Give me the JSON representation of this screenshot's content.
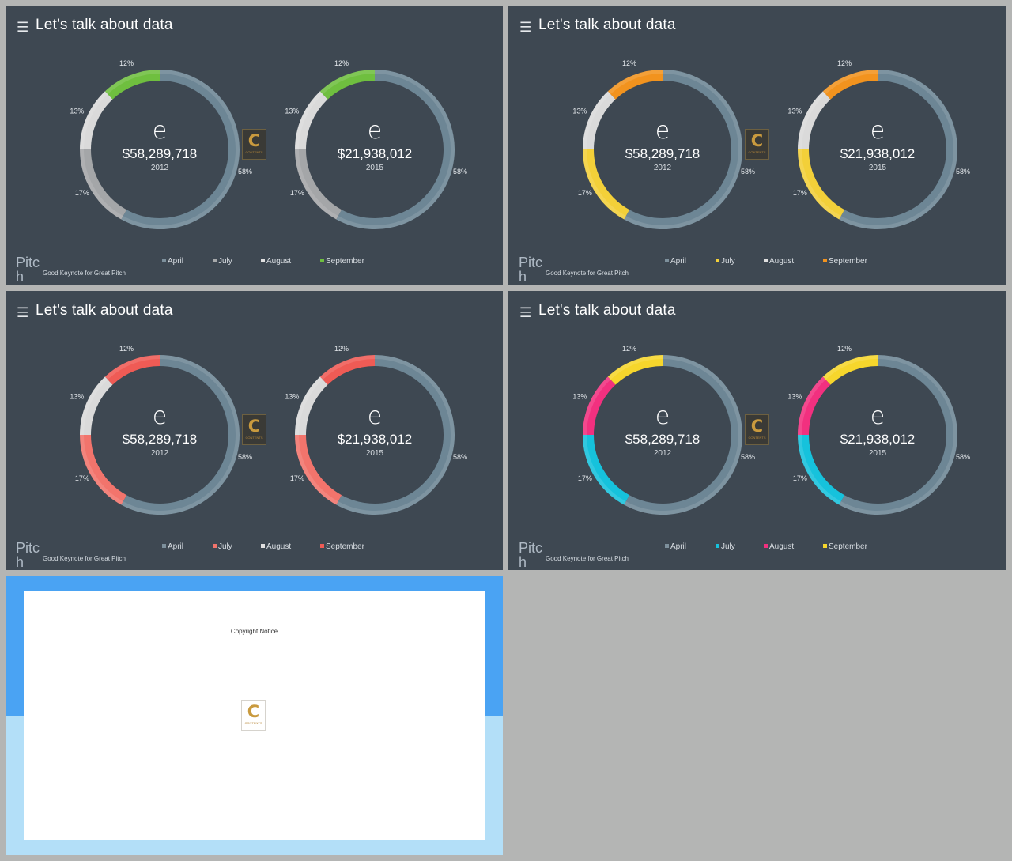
{
  "slides": [
    {
      "title": "Let's talk about data",
      "brand": "Pitc\nh",
      "tagline": "Good Keynote for Great Pitch",
      "legend": [
        {
          "label": "April",
          "color": "#7d909c"
        },
        {
          "label": "July",
          "color": "#a7a9ab"
        },
        {
          "label": "August",
          "color": "#e0e0e0"
        },
        {
          "label": "September",
          "color": "#6fbf3f"
        }
      ]
    },
    {
      "title": "Let's talk about data",
      "brand": "Pitc\nh",
      "tagline": "Good Keynote for Great Pitch",
      "legend": [
        {
          "label": "April",
          "color": "#7d909c"
        },
        {
          "label": "July",
          "color": "#f3d039"
        },
        {
          "label": "August",
          "color": "#e0e0e0"
        },
        {
          "label": "September",
          "color": "#f2931e"
        }
      ]
    },
    {
      "title": "Let's talk about data",
      "brand": "Pitc\nh",
      "tagline": "Good Keynote for Great Pitch",
      "legend": [
        {
          "label": "April",
          "color": "#7d909c"
        },
        {
          "label": "July",
          "color": "#f2746c"
        },
        {
          "label": "August",
          "color": "#e0e0e0"
        },
        {
          "label": "September",
          "color": "#ef5b55"
        }
      ]
    },
    {
      "title": "Let's talk about data",
      "brand": "Pitc\nh",
      "tagline": "Good Keynote for Great Pitch",
      "legend": [
        {
          "label": "April",
          "color": "#7d909c"
        },
        {
          "label": "July",
          "color": "#16c2dc"
        },
        {
          "label": "August",
          "color": "#f2307f"
        },
        {
          "label": "September",
          "color": "#f6d62c"
        }
      ]
    }
  ],
  "chart_data": [
    {
      "type": "pie",
      "slide": 1,
      "center_glyph": "e",
      "center_value": "$58,289,718",
      "center_year": "2012",
      "labels": [
        "April",
        "July",
        "August",
        "September"
      ],
      "values": [
        58,
        17,
        13,
        12
      ],
      "value_labels": [
        "58%",
        "17%",
        "13%",
        "12%"
      ],
      "colors": [
        "#6d8695",
        "#a4a6a8",
        "#dadada",
        "#6fbf3f"
      ]
    },
    {
      "type": "pie",
      "slide": 1,
      "center_glyph": "e",
      "center_value": "$21,938,012",
      "center_year": "2015",
      "labels": [
        "April",
        "July",
        "August",
        "September"
      ],
      "values": [
        58,
        17,
        13,
        12
      ],
      "value_labels": [
        "58%",
        "17%",
        "13%",
        "12%"
      ],
      "colors": [
        "#6d8695",
        "#a4a6a8",
        "#dadada",
        "#6fbf3f"
      ]
    },
    {
      "type": "pie",
      "slide": 2,
      "center_glyph": "e",
      "center_value": "$58,289,718",
      "center_year": "2012",
      "labels": [
        "April",
        "July",
        "August",
        "September"
      ],
      "values": [
        58,
        17,
        13,
        12
      ],
      "value_labels": [
        "58%",
        "17%",
        "13%",
        "12%"
      ],
      "colors": [
        "#6d8695",
        "#f3d039",
        "#dadada",
        "#f2931e"
      ]
    },
    {
      "type": "pie",
      "slide": 2,
      "center_glyph": "e",
      "center_value": "$21,938,012",
      "center_year": "2015",
      "labels": [
        "April",
        "July",
        "August",
        "September"
      ],
      "values": [
        58,
        17,
        13,
        12
      ],
      "value_labels": [
        "58%",
        "17%",
        "13%",
        "12%"
      ],
      "colors": [
        "#6d8695",
        "#f3d039",
        "#dadada",
        "#f2931e"
      ]
    },
    {
      "type": "pie",
      "slide": 3,
      "center_glyph": "e",
      "center_value": "$58,289,718",
      "center_year": "2012",
      "labels": [
        "April",
        "July",
        "August",
        "September"
      ],
      "values": [
        58,
        17,
        13,
        12
      ],
      "value_labels": [
        "58%",
        "17%",
        "13%",
        "12%"
      ],
      "colors": [
        "#6d8695",
        "#f2746c",
        "#dadada",
        "#ef5b55"
      ]
    },
    {
      "type": "pie",
      "slide": 3,
      "center_glyph": "e",
      "center_value": "$21,938,012",
      "center_year": "2015",
      "labels": [
        "April",
        "July",
        "August",
        "September"
      ],
      "values": [
        58,
        17,
        13,
        12
      ],
      "value_labels": [
        "58%",
        "17%",
        "13%",
        "12%"
      ],
      "colors": [
        "#6d8695",
        "#f2746c",
        "#dadada",
        "#ef5b55"
      ]
    },
    {
      "type": "pie",
      "slide": 4,
      "center_glyph": "e",
      "center_value": "$58,289,718",
      "center_year": "2012",
      "labels": [
        "April",
        "July",
        "August",
        "September"
      ],
      "values": [
        58,
        17,
        13,
        12
      ],
      "value_labels": [
        "58%",
        "17%",
        "13%",
        "12%"
      ],
      "colors": [
        "#6d8695",
        "#16c2dc",
        "#f2307f",
        "#f6d62c"
      ]
    },
    {
      "type": "pie",
      "slide": 4,
      "center_glyph": "e",
      "center_value": "$21,938,012",
      "center_year": "2015",
      "labels": [
        "April",
        "July",
        "August",
        "September"
      ],
      "values": [
        58,
        17,
        13,
        12
      ],
      "value_labels": [
        "58%",
        "17%",
        "13%",
        "12%"
      ],
      "colors": [
        "#6d8695",
        "#16c2dc",
        "#f2307f",
        "#f6d62c"
      ]
    }
  ],
  "logo": {
    "letter": "C",
    "text": "CONTENTS"
  },
  "copyright_slide": {
    "notice": "Copyright Notice"
  }
}
